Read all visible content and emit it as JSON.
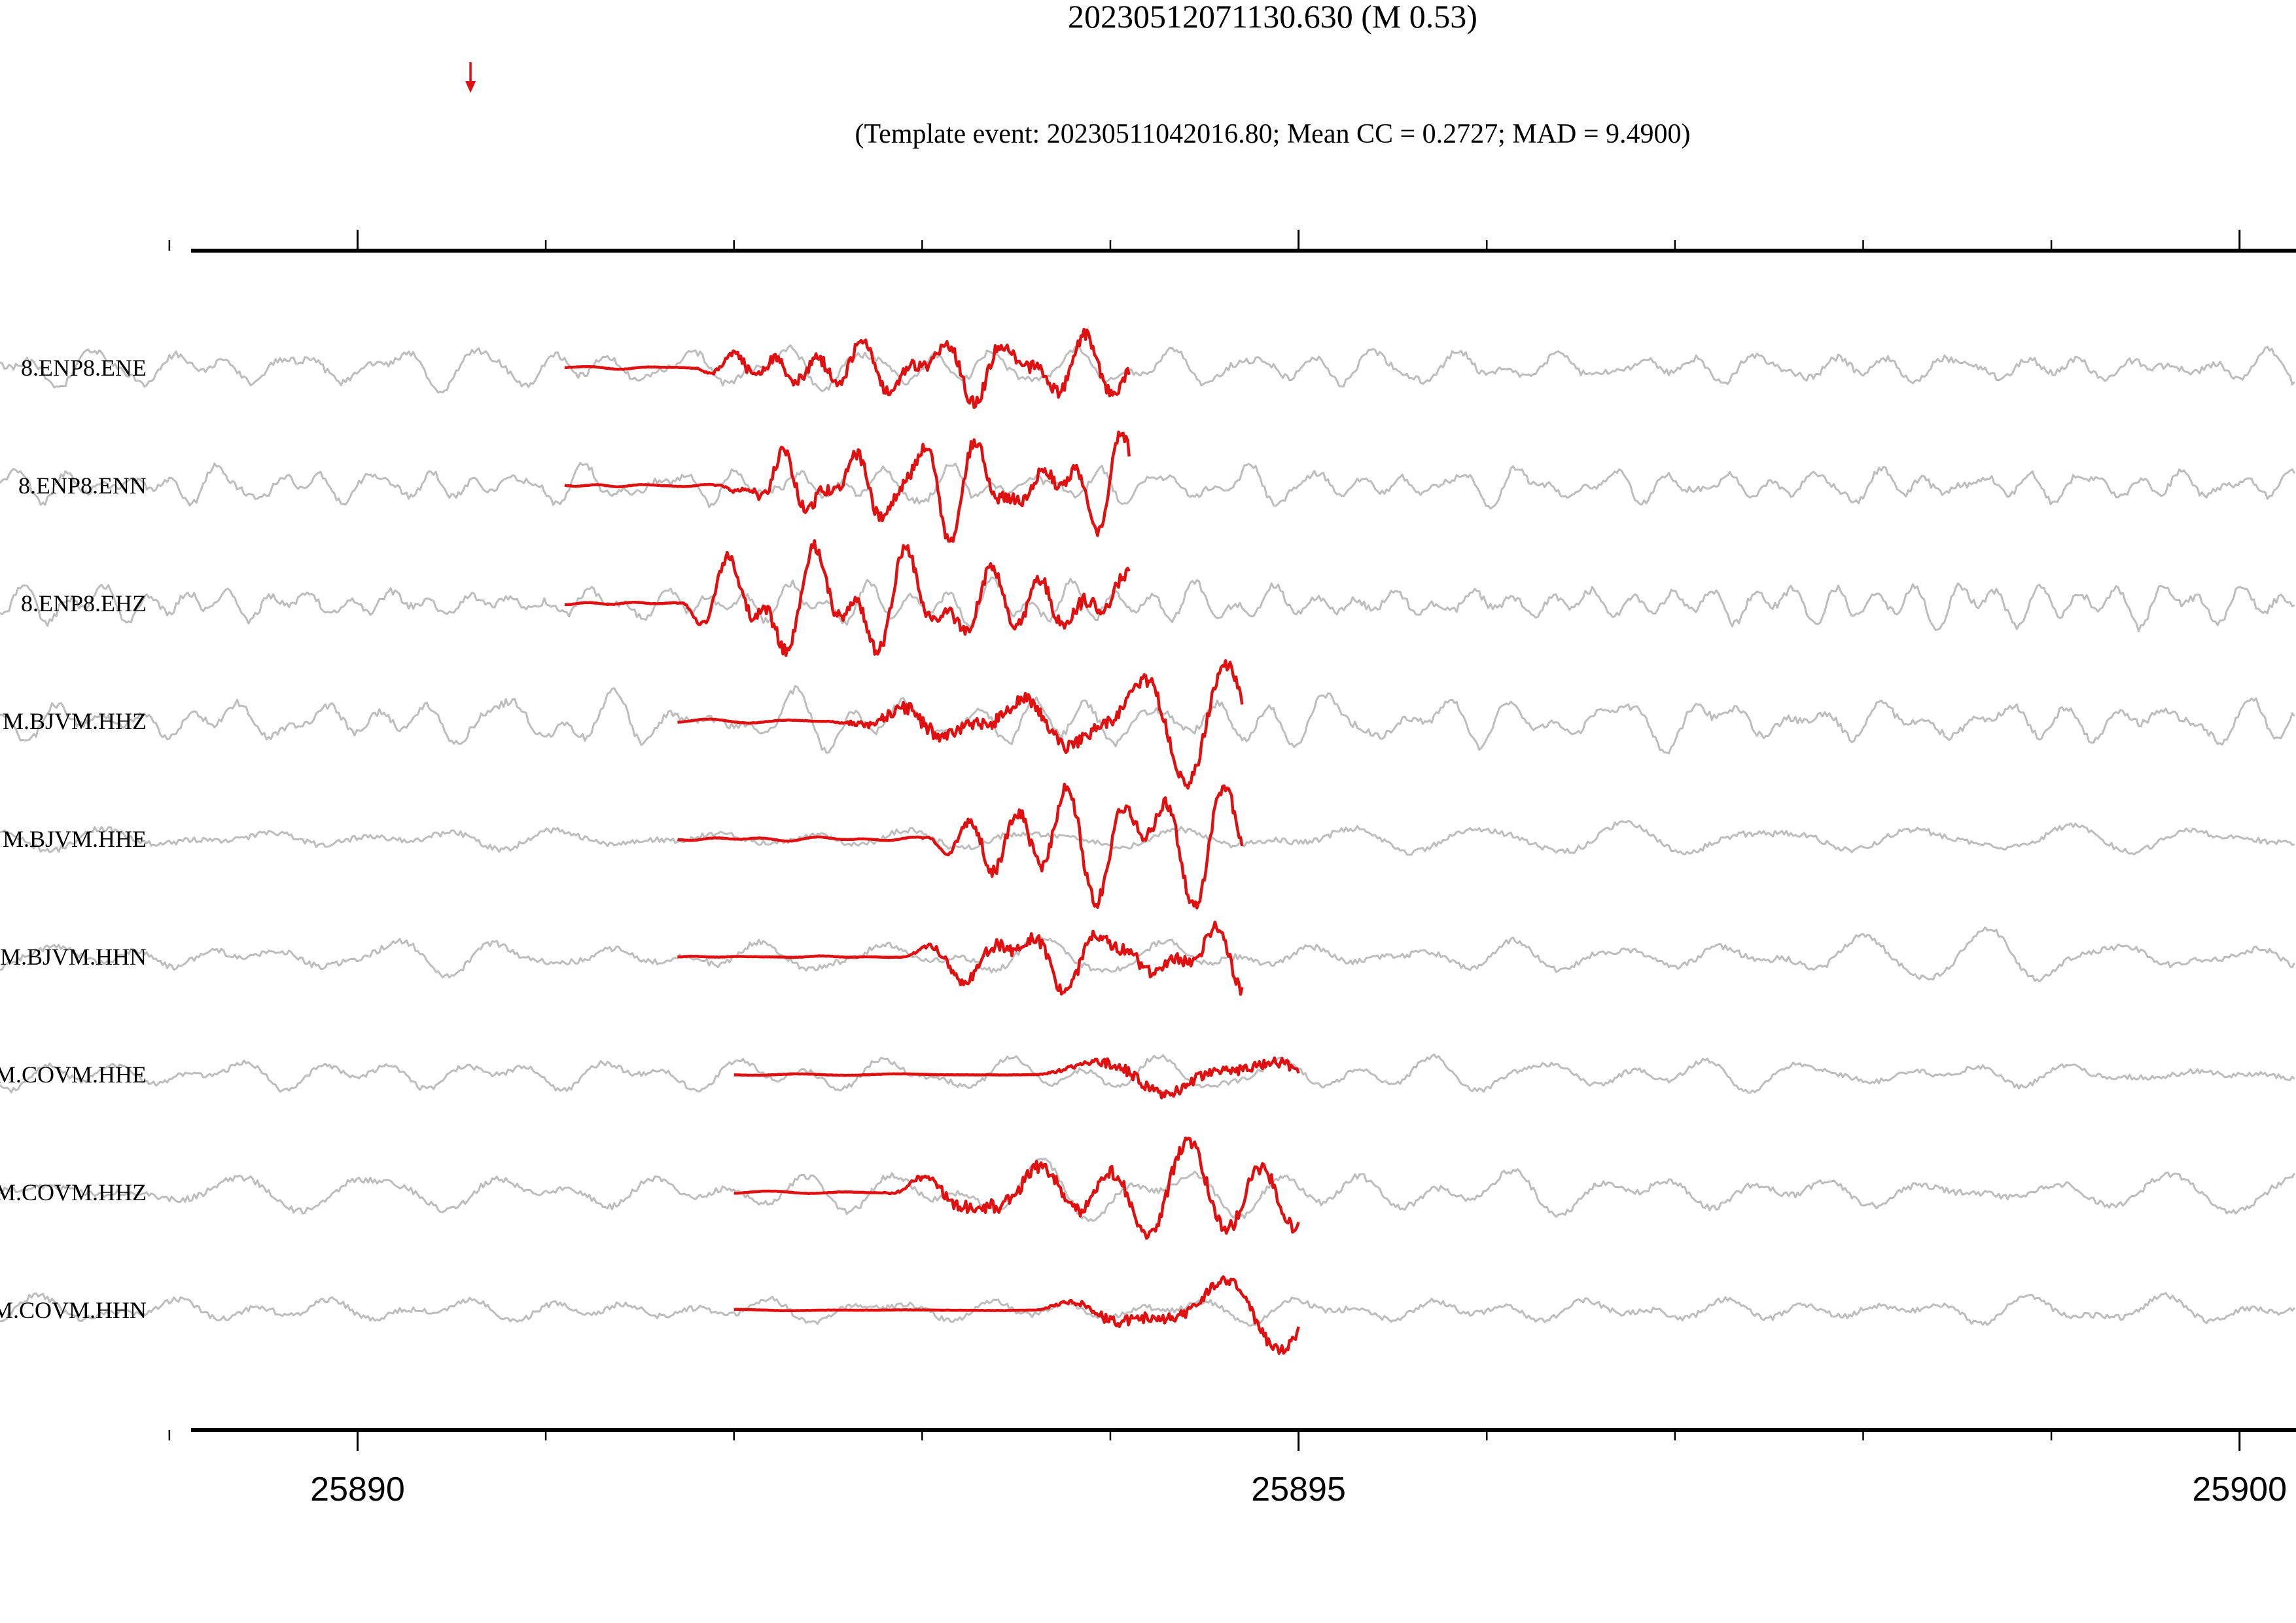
{
  "chart_data": {
    "type": "line",
    "title": "20230512071130.630 (M 0.53)",
    "subtitle": "(Template event: 20230511042016.80; Mean CC = 0.2727; MAD = 9.4900)",
    "xlabel": "",
    "ylabel": "",
    "xlim": [
      25888.1,
      25900.3
    ],
    "x_major_ticks": [
      25890,
      25895,
      25900
    ],
    "x_tick_labels": [
      "25890",
      "25895",
      "25900"
    ],
    "x_minor_ticks": [
      25889,
      25891,
      25892,
      25893,
      25894,
      25896,
      25897,
      25898,
      25899
    ],
    "detection_marker_x": 25890.6,
    "colors": {
      "continuous": "#bdbdbd",
      "template": "#e01010",
      "axis": "#000000",
      "marker": "#e01010"
    },
    "grid": false,
    "legend": "none",
    "series": [
      {
        "name": "8.ENP8.ENE",
        "template_start": 25891.1,
        "template_end": 25894.1,
        "onset": 25891.8,
        "freq": 3.2,
        "amp": 0.55,
        "noise_freq": 3.0,
        "noise_amp": 0.18,
        "seed": 11
      },
      {
        "name": "8.ENP8.ENN",
        "template_start": 25891.1,
        "template_end": 25894.1,
        "onset": 25891.9,
        "freq": 3.0,
        "amp": 0.55,
        "noise_freq": 3.1,
        "noise_amp": 0.18,
        "seed": 23
      },
      {
        "name": "8.ENP8.EHZ",
        "template_start": 25891.1,
        "template_end": 25894.1,
        "onset": 25891.7,
        "freq": 3.2,
        "amp": 0.6,
        "noise_freq": 3.2,
        "noise_amp": 0.2,
        "seed": 37
      },
      {
        "name": "M.BJVM.HHZ",
        "template_start": 25891.7,
        "template_end": 25894.7,
        "onset": 25892.5,
        "freq": 2.2,
        "amp": 0.6,
        "noise_freq": 2.4,
        "noise_amp": 0.2,
        "seed": 41
      },
      {
        "name": "M.BJVM.HHE",
        "template_start": 25891.7,
        "template_end": 25894.7,
        "onset": 25893.0,
        "freq": 2.8,
        "amp": 0.6,
        "noise_freq": 1.6,
        "noise_amp": 0.16,
        "seed": 53
      },
      {
        "name": "M.BJVM.HHN",
        "template_start": 25891.7,
        "template_end": 25894.7,
        "onset": 25892.9,
        "freq": 2.5,
        "amp": 0.55,
        "noise_freq": 1.9,
        "noise_amp": 0.16,
        "seed": 67
      },
      {
        "name": "M.COVM.HHE",
        "template_start": 25892.0,
        "template_end": 25895.0,
        "onset": 25893.6,
        "freq": 1.3,
        "amp": 0.45,
        "noise_freq": 1.6,
        "noise_amp": 0.14,
        "seed": 71
      },
      {
        "name": "M.COVM.HHZ",
        "template_start": 25892.0,
        "template_end": 25895.0,
        "onset": 25892.8,
        "freq": 1.8,
        "amp": 0.6,
        "noise_freq": 1.7,
        "noise_amp": 0.17,
        "seed": 83
      },
      {
        "name": "M.COVM.HHN",
        "template_start": 25892.0,
        "template_end": 25895.0,
        "onset": 25893.6,
        "freq": 1.6,
        "amp": 0.45,
        "noise_freq": 1.8,
        "noise_amp": 0.15,
        "seed": 97
      }
    ]
  }
}
